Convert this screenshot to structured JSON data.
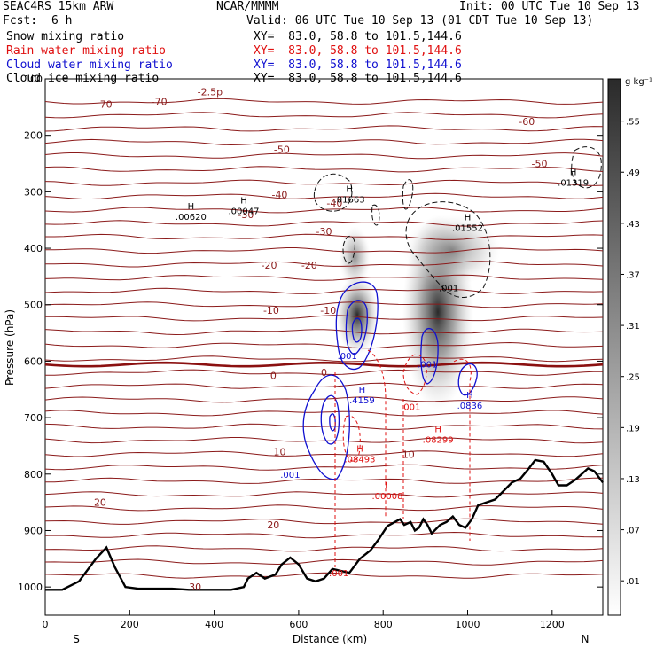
{
  "header": {
    "model": "SEAC4RS 15km ARW",
    "org": "NCAR/MMMM",
    "init": "Init: 00 UTC Tue 10 Sep 13",
    "fcst_label": "Fcst:",
    "fcst_value": "6 h",
    "valid": "Valid: 06 UTC Tue 10 Sep 13 (01 CDT Tue 10 Sep 13)",
    "fields": [
      {
        "name": "Snow mixing ratio",
        "xy": "XY=  83.0, 58.8 to 101.5,144.6",
        "color": "#000000"
      },
      {
        "name": "Rain water mixing ratio",
        "xy": "XY=  83.0, 58.8 to 101.5,144.6",
        "color": "#e01010"
      },
      {
        "name": "Cloud water mixing ratio",
        "xy": "XY=  83.0, 58.8 to 101.5,144.6",
        "color": "#1010d0"
      },
      {
        "name": "Cloud ice mixing ratio",
        "xy": "XY=  83.0, 58.8 to 101.5,144.6",
        "color": "#000000"
      }
    ]
  },
  "chart_data": {
    "type": "cross-section contour",
    "xlabel": "Distance (km)",
    "ylabel": "Pressure (hPa)",
    "xlim": [
      0,
      1320
    ],
    "ylim": [
      1050,
      100
    ],
    "x_ticks": [
      0,
      200,
      400,
      600,
      800,
      1000,
      1200
    ],
    "y_ticks": [
      100,
      200,
      300,
      400,
      500,
      600,
      700,
      800,
      900,
      1000
    ],
    "x_end_labels": [
      "S",
      "N"
    ],
    "colorbar": {
      "unit": "g kg⁻¹",
      "ticks": [
        ".01",
        ".07",
        ".13",
        ".19",
        ".25",
        ".31",
        ".37",
        ".43",
        ".49",
        ".55"
      ]
    },
    "temperature_contours": {
      "color": "#8b1a1a",
      "freezing_level_label": "0",
      "labels": [
        {
          "text": "-70",
          "x": 140,
          "p": 145
        },
        {
          "text": "-70",
          "x": 270,
          "p": 140
        },
        {
          "text": "-2.5p",
          "x": 390,
          "p": 123
        },
        {
          "text": "-60",
          "x": 1140,
          "p": 175
        },
        {
          "text": "-50",
          "x": 560,
          "p": 225
        },
        {
          "text": "-50",
          "x": 1170,
          "p": 250
        },
        {
          "text": "-40",
          "x": 555,
          "p": 305
        },
        {
          "text": "-40",
          "x": 685,
          "p": 320
        },
        {
          "text": "-30",
          "x": 475,
          "p": 340
        },
        {
          "text": "-30",
          "x": 660,
          "p": 370
        },
        {
          "text": "-20",
          "x": 530,
          "p": 430
        },
        {
          "text": "-20",
          "x": 625,
          "p": 430
        },
        {
          "text": "-10",
          "x": 535,
          "p": 510
        },
        {
          "text": "-10",
          "x": 670,
          "p": 510
        },
        {
          "text": "0",
          "x": 540,
          "p": 625
        },
        {
          "text": "0",
          "x": 660,
          "p": 620
        },
        {
          "text": "10",
          "x": 555,
          "p": 760
        },
        {
          "text": "10",
          "x": 860,
          "p": 765
        },
        {
          "text": "20",
          "x": 130,
          "p": 850
        },
        {
          "text": "20",
          "x": 540,
          "p": 890
        },
        {
          "text": "30",
          "x": 355,
          "p": 1000
        }
      ]
    },
    "maxima": [
      {
        "letter": "H",
        "value": ".00620",
        "x": 345,
        "p": 340,
        "color": "#000000"
      },
      {
        "letter": "H",
        "value": ".00047",
        "x": 470,
        "p": 330,
        "color": "#000000"
      },
      {
        "letter": "H",
        "value": ".01663",
        "x": 720,
        "p": 310,
        "color": "#000000"
      },
      {
        "letter": "H",
        "value": ".01552",
        "x": 1000,
        "p": 360,
        "color": "#000000"
      },
      {
        "letter": "H",
        "value": ".01319",
        "x": 1250,
        "p": 280,
        "color": "#000000"
      },
      {
        "letter": "H",
        "value": ".4159",
        "x": 750,
        "p": 665,
        "color": "#1010d0"
      },
      {
        "letter": "H",
        "value": ".0836",
        "x": 1005,
        "p": 675,
        "color": "#1010d0"
      },
      {
        "letter": "H",
        "value": ".08493",
        "x": 745,
        "p": 770,
        "color": "#e01010"
      },
      {
        "letter": "H",
        "value": ".08299",
        "x": 930,
        "p": 735,
        "color": "#e01010"
      },
      {
        "letter": "L",
        "value": ".00008",
        "x": 810,
        "p": 835,
        "color": "#e01010"
      }
    ],
    "contour_labels": [
      {
        "text": ".001",
        "x": 955,
        "p": 470,
        "color": "#000000"
      },
      {
        "text": ".001",
        "x": 715,
        "p": 590,
        "color": "#1010d0"
      },
      {
        "text": ".001",
        "x": 905,
        "p": 605,
        "color": "#1010d0"
      },
      {
        "text": ".001",
        "x": 580,
        "p": 800,
        "color": "#1010d0"
      },
      {
        "text": ".001",
        "x": 865,
        "p": 680,
        "color": "#e01010"
      },
      {
        "text": ".001",
        "x": 695,
        "p": 975,
        "color": "#e01010"
      }
    ],
    "terrain": [
      [
        0,
        1005
      ],
      [
        40,
        1005
      ],
      [
        80,
        990
      ],
      [
        120,
        950
      ],
      [
        145,
        930
      ],
      [
        165,
        965
      ],
      [
        190,
        1000
      ],
      [
        220,
        1003
      ],
      [
        260,
        1003
      ],
      [
        300,
        1003
      ],
      [
        340,
        1005
      ],
      [
        400,
        1005
      ],
      [
        440,
        1005
      ],
      [
        470,
        1000
      ],
      [
        480,
        985
      ],
      [
        500,
        975
      ],
      [
        520,
        985
      ],
      [
        545,
        978
      ],
      [
        560,
        960
      ],
      [
        580,
        948
      ],
      [
        600,
        960
      ],
      [
        620,
        985
      ],
      [
        640,
        990
      ],
      [
        660,
        985
      ],
      [
        680,
        968
      ],
      [
        720,
        975
      ],
      [
        745,
        950
      ],
      [
        770,
        935
      ],
      [
        790,
        915
      ],
      [
        810,
        892
      ],
      [
        840,
        880
      ],
      [
        850,
        890
      ],
      [
        865,
        885
      ],
      [
        875,
        900
      ],
      [
        885,
        895
      ],
      [
        895,
        880
      ],
      [
        905,
        890
      ],
      [
        915,
        905
      ],
      [
        935,
        890
      ],
      [
        950,
        885
      ],
      [
        965,
        875
      ],
      [
        980,
        890
      ],
      [
        995,
        895
      ],
      [
        1010,
        880
      ],
      [
        1025,
        855
      ],
      [
        1045,
        850
      ],
      [
        1065,
        845
      ],
      [
        1085,
        830
      ],
      [
        1105,
        815
      ],
      [
        1125,
        808
      ],
      [
        1145,
        790
      ],
      [
        1160,
        775
      ],
      [
        1180,
        778
      ],
      [
        1200,
        800
      ],
      [
        1215,
        820
      ],
      [
        1235,
        820
      ],
      [
        1255,
        810
      ],
      [
        1270,
        800
      ],
      [
        1285,
        790
      ],
      [
        1300,
        795
      ],
      [
        1320,
        815
      ]
    ]
  }
}
